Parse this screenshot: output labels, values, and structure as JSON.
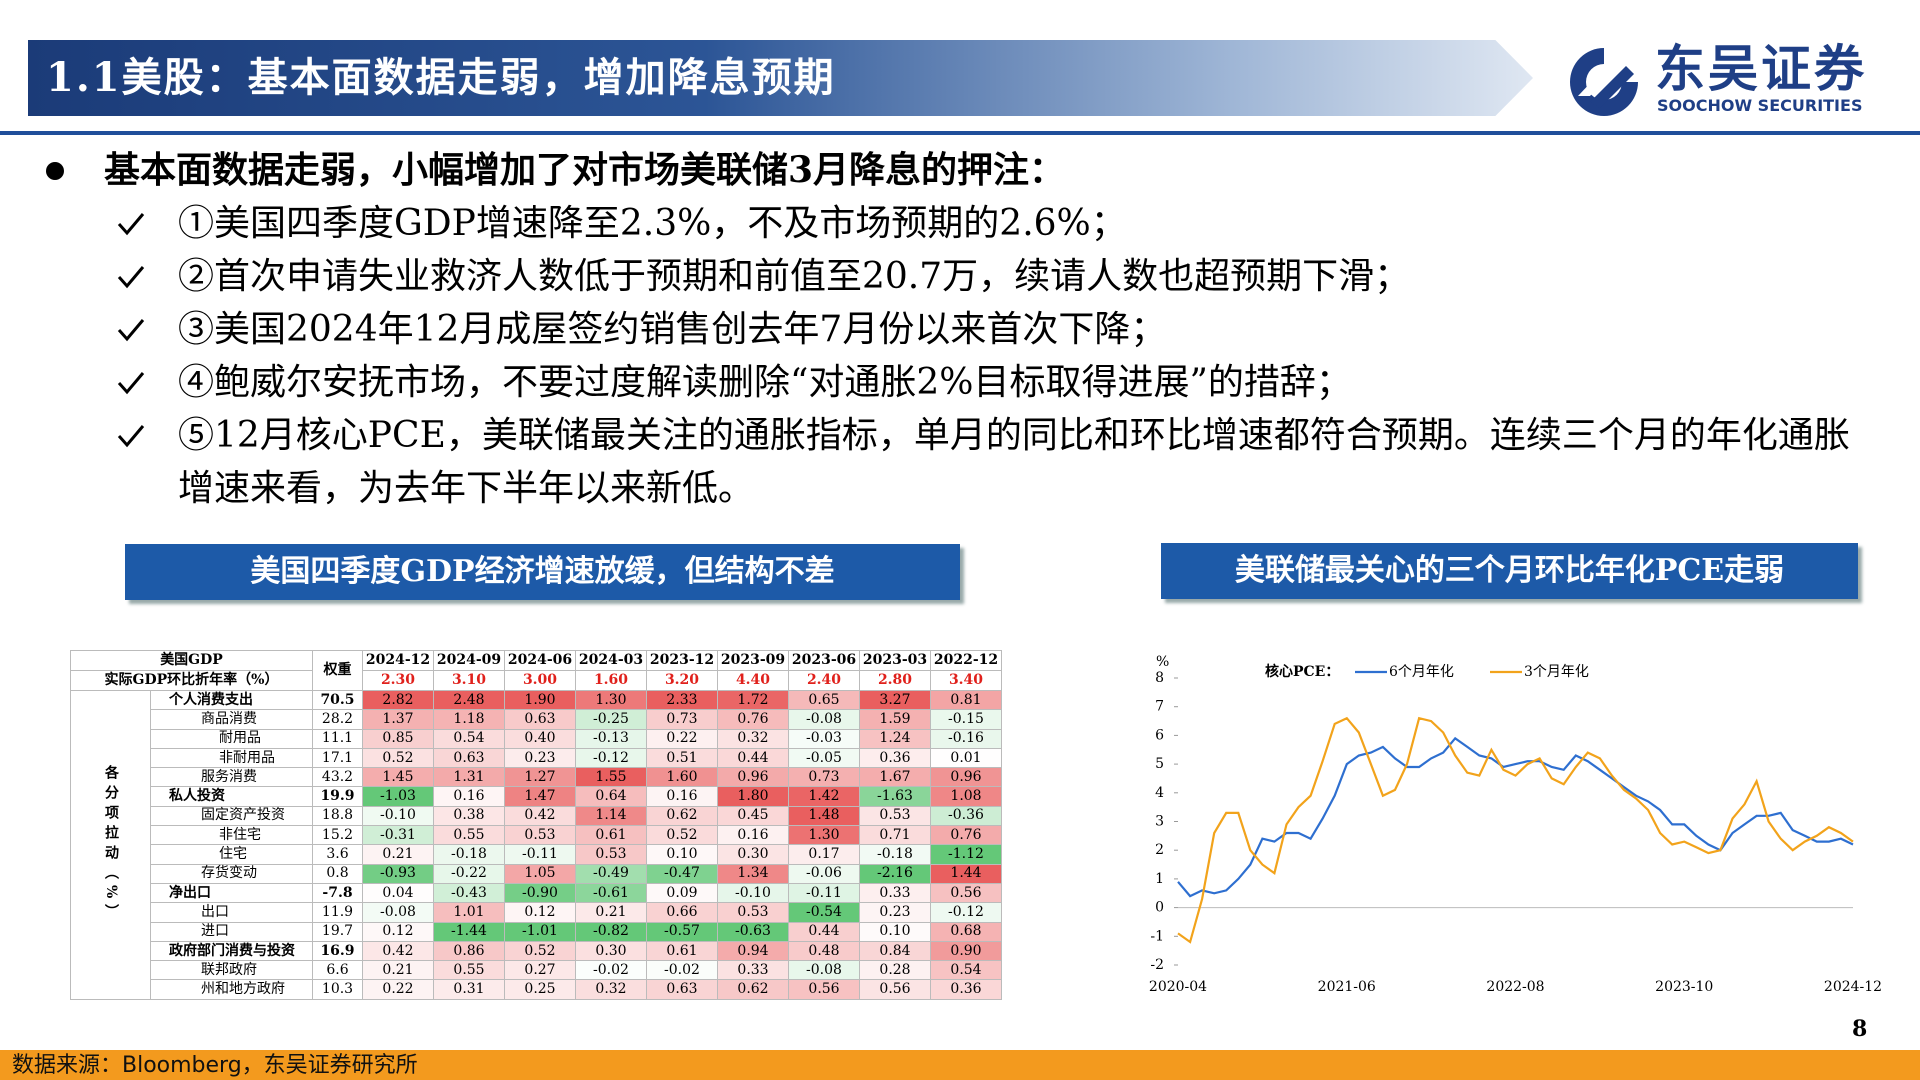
{
  "header": {
    "title": "1.1美股：基本面数据走弱，增加降息预期",
    "logo_cn": "东吴证券",
    "logo_en": "SOOCHOW SECURITIES"
  },
  "bullets": {
    "main": "基本面数据走弱，小幅增加了对市场美联储3月降息的押注：",
    "items": [
      "①美国四季度GDP增速降至2.3%，不及市场预期的2.6%；",
      "②首次申请失业救济人数低于预期和前值至20.7万，续请人数也超预期下滑；",
      "③美国2024年12月成屋签约销售创去年7月份以来首次下降；",
      "④鲍威尔安抚市场，不要过度解读删除“对通胀2%目标取得进展”的措辞；",
      "⑤12月核心PCE，美联储最关注的通胀指标，单月的同比和环比增速都符合预期。连续三个月的年化通胀增速来看，为去年下半年以来新低。"
    ]
  },
  "left_panel": {
    "title": "美国四季度GDP经济增速放缓，但结构不差"
  },
  "right_panel": {
    "title": "美联储最关心的三个月环比年化PCE走弱"
  },
  "table": {
    "corner": [
      "美国GDP",
      "实际GDP环比折年率（%）"
    ],
    "weight_header": "权重",
    "side_label": "各分项拉动（%）",
    "columns": [
      "2024-12",
      "2024-09",
      "2024-06",
      "2024-03",
      "2023-12",
      "2023-09",
      "2023-06",
      "2023-03",
      "2022-12"
    ],
    "gdp": [
      "2.30",
      "3.10",
      "3.00",
      "1.60",
      "3.20",
      "4.40",
      "2.40",
      "2.80",
      "3.40"
    ],
    "rows": [
      [
        "个人消费支出",
        "70.5",
        "2.82",
        "2.48",
        "1.90",
        "1.30",
        "2.33",
        "1.72",
        "0.65",
        "3.27",
        "0.81"
      ],
      [
        "商品消费",
        "28.2",
        "1.37",
        "1.18",
        "0.63",
        "-0.25",
        "0.73",
        "0.76",
        "-0.08",
        "1.59",
        "-0.15"
      ],
      [
        "耐用品",
        "11.1",
        "0.85",
        "0.54",
        "0.40",
        "-0.13",
        "0.22",
        "0.32",
        "-0.03",
        "1.24",
        "-0.16"
      ],
      [
        "非耐用品",
        "17.1",
        "0.52",
        "0.63",
        "0.23",
        "-0.12",
        "0.51",
        "0.44",
        "-0.05",
        "0.36",
        "0.01"
      ],
      [
        "服务消费",
        "43.2",
        "1.45",
        "1.31",
        "1.27",
        "1.55",
        "1.60",
        "0.96",
        "0.73",
        "1.67",
        "0.96"
      ],
      [
        "私人投资",
        "19.9",
        "-1.03",
        "0.16",
        "1.47",
        "0.64",
        "0.16",
        "1.80",
        "1.42",
        "-1.63",
        "1.08"
      ],
      [
        "固定资产投资",
        "18.8",
        "-0.10",
        "0.38",
        "0.42",
        "1.14",
        "0.62",
        "0.45",
        "1.48",
        "0.53",
        "-0.36"
      ],
      [
        "非住宅",
        "15.2",
        "-0.31",
        "0.55",
        "0.53",
        "0.61",
        "0.52",
        "0.16",
        "1.30",
        "0.71",
        "0.76"
      ],
      [
        "住宅",
        "3.6",
        "0.21",
        "-0.18",
        "-0.11",
        "0.53",
        "0.10",
        "0.30",
        "0.17",
        "-0.18",
        "-1.12"
      ],
      [
        "存货变动",
        "0.8",
        "-0.93",
        "-0.22",
        "1.05",
        "-0.49",
        "-0.47",
        "1.34",
        "-0.06",
        "-2.16",
        "1.44"
      ],
      [
        "净出口",
        "-7.8",
        "0.04",
        "-0.43",
        "-0.90",
        "-0.61",
        "0.09",
        "-0.10",
        "-0.11",
        "0.33",
        "0.56"
      ],
      [
        "出口",
        "11.9",
        "-0.08",
        "1.01",
        "0.12",
        "0.21",
        "0.66",
        "0.53",
        "-0.54",
        "0.23",
        "-0.12"
      ],
      [
        "进口",
        "19.7",
        "0.12",
        "-1.44",
        "-1.01",
        "-0.82",
        "-0.57",
        "-0.63",
        "0.44",
        "0.10",
        "0.68"
      ],
      [
        "政府部门消费与投资",
        "16.9",
        "0.42",
        "0.86",
        "0.52",
        "0.30",
        "0.61",
        "0.94",
        "0.48",
        "0.84",
        "0.90"
      ],
      [
        "联邦政府",
        "6.6",
        "0.21",
        "0.55",
        "0.27",
        "-0.02",
        "-0.02",
        "0.33",
        "-0.08",
        "0.28",
        "0.54"
      ],
      [
        "州和地方政府",
        "10.3",
        "0.22",
        "0.31",
        "0.25",
        "0.32",
        "0.63",
        "0.62",
        "0.56",
        "0.56",
        "0.36"
      ]
    ]
  },
  "chart_data": {
    "type": "line",
    "title": "核心PCE：",
    "y_label": "%",
    "categories": [
      "2020-04",
      null,
      null,
      null,
      null,
      null,
      null,
      null,
      null,
      null,
      null,
      null,
      null,
      null,
      "2021-06",
      null,
      null,
      null,
      null,
      null,
      null,
      null,
      null,
      null,
      null,
      null,
      null,
      null,
      "2022-08",
      null,
      null,
      null,
      null,
      null,
      null,
      null,
      null,
      null,
      null,
      null,
      null,
      null,
      "2023-10",
      null,
      null,
      null,
      null,
      null,
      null,
      null,
      null,
      null,
      null,
      null,
      null,
      null,
      "2024-12"
    ],
    "series": [
      {
        "name": "6个月年化",
        "color": "#2e6fd0",
        "values": [
          0.9,
          0.4,
          0.6,
          0.5,
          0.6,
          1.0,
          1.5,
          2.4,
          2.3,
          2.6,
          2.6,
          2.4,
          3.1,
          3.9,
          5.0,
          5.3,
          5.4,
          5.6,
          5.2,
          4.9,
          4.9,
          5.2,
          5.4,
          5.9,
          5.6,
          5.3,
          5.2,
          4.9,
          5.0,
          5.1,
          5.1,
          4.9,
          4.8,
          5.3,
          5.1,
          4.8,
          4.5,
          4.2,
          3.9,
          3.7,
          3.4,
          2.9,
          2.9,
          2.5,
          2.2,
          2.0,
          2.6,
          2.9,
          3.2,
          3.2,
          3.3,
          2.7,
          2.5,
          2.3,
          2.3,
          2.4,
          2.2
        ]
      },
      {
        "name": "3个月年化",
        "color": "#f2a31b",
        "values": [
          -0.9,
          -1.2,
          0.3,
          2.6,
          3.3,
          3.3,
          2.0,
          1.5,
          1.2,
          2.9,
          3.5,
          3.9,
          5.1,
          6.4,
          6.6,
          6.1,
          5.0,
          3.9,
          4.1,
          5.0,
          6.6,
          6.5,
          6.1,
          5.3,
          4.7,
          4.6,
          5.5,
          4.8,
          4.6,
          5.0,
          5.2,
          4.5,
          4.3,
          4.9,
          5.4,
          5.2,
          4.6,
          4.1,
          3.8,
          3.4,
          2.6,
          2.2,
          2.3,
          2.1,
          1.9,
          2.0,
          3.1,
          3.6,
          4.4,
          3.0,
          2.4,
          2.0,
          2.3,
          2.5,
          2.8,
          2.6,
          2.3
        ]
      }
    ],
    "ylim": [
      -2,
      8
    ],
    "yticks": [
      -2,
      -1,
      0,
      1,
      2,
      3,
      4,
      5,
      6,
      7,
      8
    ],
    "grid": false
  },
  "footer": {
    "source": "数据来源：Bloomberg，东吴证券研究所",
    "page": "8"
  }
}
